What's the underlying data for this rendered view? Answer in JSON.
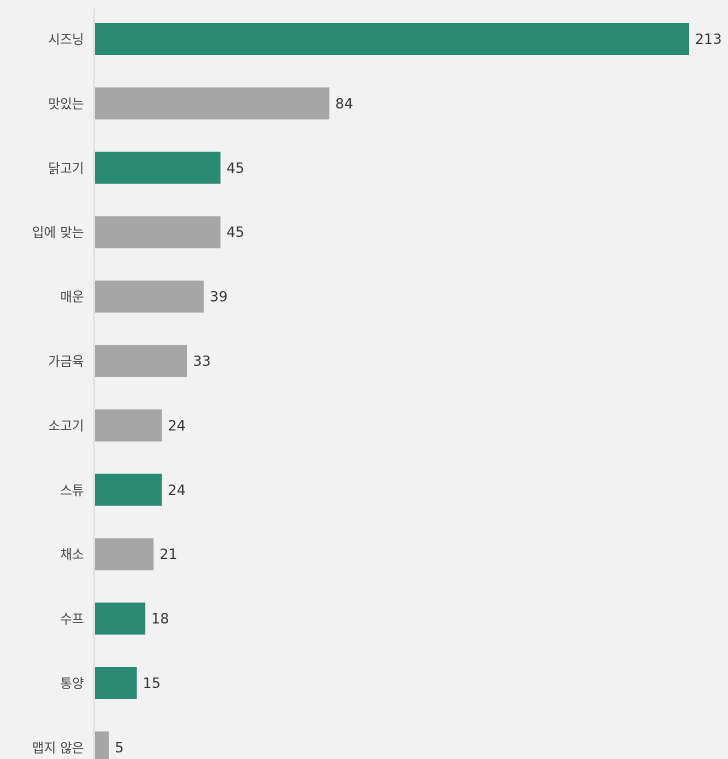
{
  "chart_data": {
    "type": "bar",
    "orientation": "horizontal",
    "title": "",
    "xlabel": "",
    "ylabel": "",
    "grid": false,
    "legend": "none",
    "xlim": [
      0,
      213
    ],
    "categories": [
      "시즈닝",
      "맛있는",
      "닭고기",
      "입에 맞는",
      "매운",
      "가금육",
      "소고기",
      "스튜",
      "채소",
      "수프",
      "통양",
      "맵지 않은"
    ],
    "values": [
      213,
      84,
      45,
      45,
      39,
      33,
      24,
      24,
      21,
      18,
      15,
      5
    ],
    "highlighted": [
      true,
      false,
      true,
      false,
      false,
      false,
      false,
      true,
      false,
      true,
      true,
      false
    ],
    "colors": {
      "highlight": "#2a8a72",
      "normal": "#a6a6a6",
      "axis": "#d0d0d0",
      "background": "#f2f2f2"
    }
  }
}
